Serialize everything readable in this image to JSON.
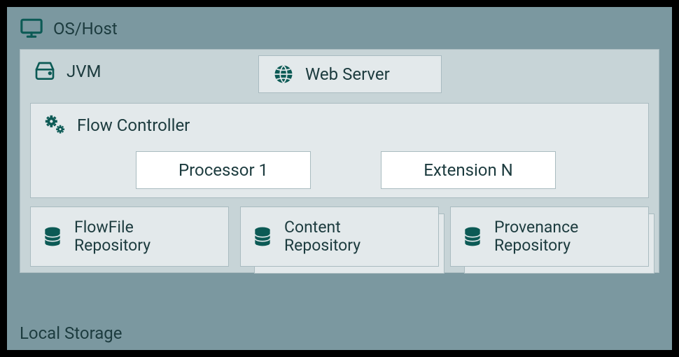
{
  "colors": {
    "host_bg": "#7b98a0",
    "jvm_bg": "#c7d4d7",
    "box_bg": "#e3e9eb",
    "border": "#a9bbc0",
    "text": "#1c3b3e",
    "icon": "#0c5a55"
  },
  "os_host": {
    "label": "OS/Host"
  },
  "jvm": {
    "label": "JVM"
  },
  "web_server": {
    "label": "Web Server"
  },
  "flow_controller": {
    "label": "Flow Controller",
    "children": [
      {
        "label": "Processor 1"
      },
      {
        "label": "Extension N"
      }
    ]
  },
  "repositories": [
    {
      "label": "FlowFile Repository",
      "stacked": false
    },
    {
      "label": "Content Repository",
      "stacked": true
    },
    {
      "label": "Provenance Repository",
      "stacked": true
    }
  ],
  "local_storage": {
    "label": "Local Storage"
  }
}
